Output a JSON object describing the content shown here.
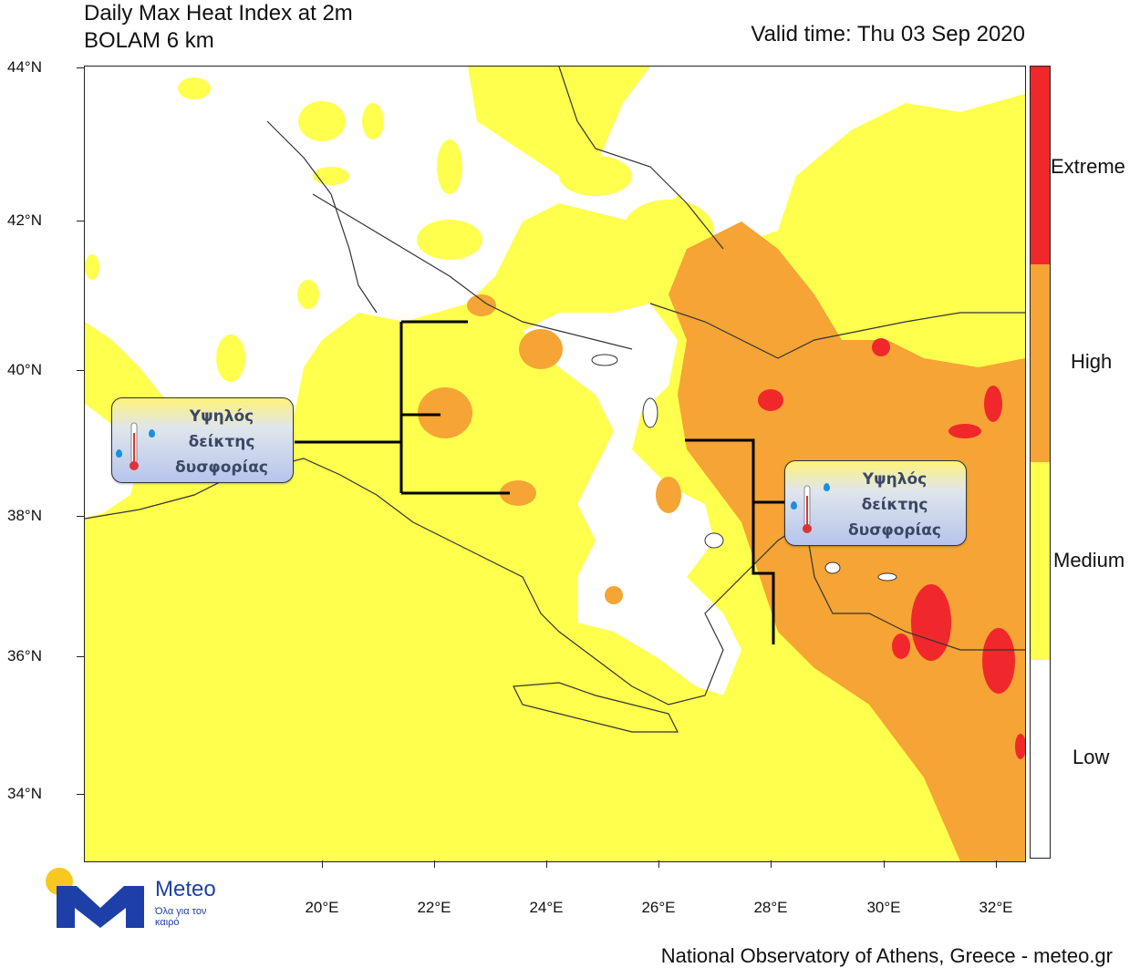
{
  "header": {
    "title_line1": "Daily Max Heat Index at 2m",
    "title_line2": "BOLAM 6 km",
    "valid_time": "Valid time: Thu 03 Sep 2020"
  },
  "axes": {
    "lat_labels": [
      "44°N",
      "42°N",
      "40°N",
      "38°N",
      "36°N",
      "34°N"
    ],
    "lon_labels": [
      "20°E",
      "22°E",
      "24°E",
      "26°E",
      "28°E",
      "30°E",
      "32°E"
    ]
  },
  "legend": {
    "categories": [
      {
        "label": "Extreme",
        "color": "#f0282c"
      },
      {
        "label": "High",
        "color": "#f5a435"
      },
      {
        "label": "Medium",
        "color": "#ffff4e"
      },
      {
        "label": "Low",
        "color": "#ffffff"
      }
    ]
  },
  "callouts": {
    "west": {
      "line1": "Υψηλός",
      "line2": "δείκτης",
      "line3": "δυσφορίας"
    },
    "east": {
      "line1": "Υψηλός",
      "line2": "δείκτης",
      "line3": "δυσφορίας"
    }
  },
  "footer": {
    "credit": "National Observatory of Athens, Greece - meteo.gr"
  },
  "logo": {
    "name": "Meteo",
    "tagline": "Όλα για τον καιρό"
  },
  "colors": {
    "low": "#ffffff",
    "medium": "#ffff4e",
    "high": "#f5a435",
    "extreme": "#f0282c",
    "border": "#333333"
  }
}
